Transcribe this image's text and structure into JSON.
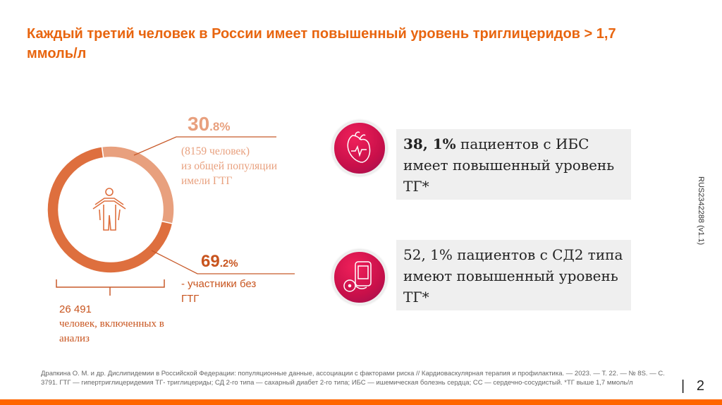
{
  "title": "Каждый третий человек в России имеет повышенный уровень триглицеридов > 1,7 ммоль/л",
  "chart_data": {
    "type": "pie",
    "style": "donut",
    "slices": [
      {
        "label": "имели ГТГ",
        "value": 30.8,
        "color": "#E8A07E"
      },
      {
        "label": "участники без ГТГ",
        "value": 69.2,
        "color": "#DE6F3E"
      }
    ],
    "center_icon": "person-icon"
  },
  "seg1": {
    "pct_int": "30",
    "pct_dec": ".8%",
    "line1": "(8159 человек)",
    "line2": "из общей популяции",
    "line3": "имели ГТГ"
  },
  "seg2": {
    "pct_int": "69",
    "pct_dec": ".2%",
    "line1": "- участники без",
    "line2": "ГТГ"
  },
  "total": {
    "line1": "26 491",
    "line2": "человек, включенных в",
    "line3": "анализ"
  },
  "card1": {
    "bold": "38, 1%",
    "text": " пациентов с ИБС имеет повышенный уровень ТГ*",
    "icon": "heart-icon"
  },
  "card2": {
    "text": "52, 1% пациентов с СД2 типа имеют повышенный уровень ТГ*",
    "icon": "glucometer-icon"
  },
  "footnote": "Драпкина О. М. и др. Дислипидемии в Российской Федерации: популяционные данные, ассоциации с факторами риска // Кардиоваскулярная терапия и профилактика. — 2023. — Т. 22. — № 8S. — С. 3791. ГТГ — гипертриглицеридемия ТГ- триглицериды; СД 2-го типа — сахарный диабет 2-го типа; ИБС — ишемическая болезнь сердца; СС — сердечно-сосудистый. *ТГ выше 1,7 ммоль/л",
  "page_number": "2",
  "doc_code": "RUS2342288 (v1.1)"
}
